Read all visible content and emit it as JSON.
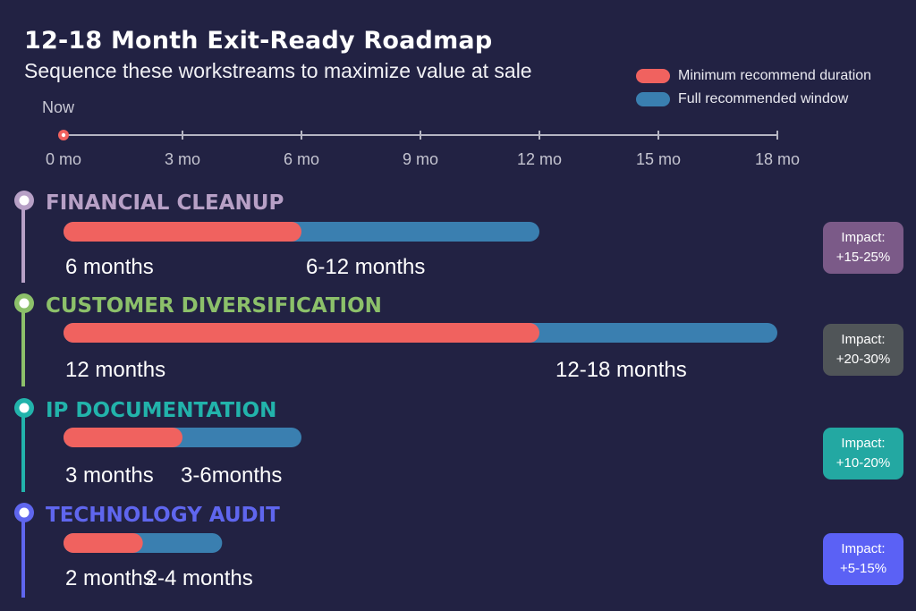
{
  "title": "12-18 Month Exit-Ready Roadmap",
  "subtitle": "Sequence these workstreams to maximize value at sale",
  "legend": {
    "min_label": "Minimum recommend duration",
    "full_label": "Full recommended window",
    "min_color": "#f0625f",
    "full_color": "#3a7fb0"
  },
  "now_label": "Now",
  "chart_data": {
    "type": "bar",
    "orientation": "horizontal",
    "title": "12-18 Month Exit-Ready Roadmap",
    "subtitle": "Sequence these workstreams to maximize value at sale",
    "xlim": [
      0,
      18
    ],
    "x_ticks": [
      0,
      3,
      6,
      9,
      12,
      15,
      18
    ],
    "x_tick_labels": [
      "0 mo",
      "3 mo",
      "6 mo",
      "9 mo",
      "12 mo",
      "15 mo",
      "18 mo"
    ],
    "legend_position": "top-right",
    "series": [
      {
        "name": "Minimum recommend duration",
        "color": "#f0625f"
      },
      {
        "name": "Full recommended window",
        "color": "#3a7fb0"
      }
    ],
    "workstreams": [
      {
        "name": "FINANCIAL CLEANUP",
        "color": "#b7a0c6",
        "impact_bg": "#7b5a88",
        "min": 6,
        "full": 12,
        "min_label": "6 months",
        "full_label": "6-12 months",
        "impact_line1": "Impact:",
        "impact_line2": "+15-25%"
      },
      {
        "name": "CUSTOMER DIVERSIFICATION",
        "color": "#8cc06a",
        "impact_bg": "#505558",
        "min": 12,
        "full": 18,
        "min_label": "12 months",
        "full_label": "12-18 months",
        "impact_line1": "Impact:",
        "impact_line2": "+20-30%"
      },
      {
        "name": "IP DOCUMENTATION",
        "color": "#22b3ab",
        "impact_bg": "#23a8a2",
        "min": 3,
        "full": 6,
        "min_label": "3 months",
        "full_label": "3-6months",
        "impact_line1": "Impact:",
        "impact_line2": "+10-20%"
      },
      {
        "name": "TECHNOLOGY AUDIT",
        "color": "#5f66ee",
        "impact_bg": "#5b61f5",
        "min": 2,
        "full": 4,
        "min_label": "2 months",
        "full_label": "2-4 months",
        "impact_line1": "Impact:",
        "impact_line2": "+5-15%"
      }
    ]
  }
}
